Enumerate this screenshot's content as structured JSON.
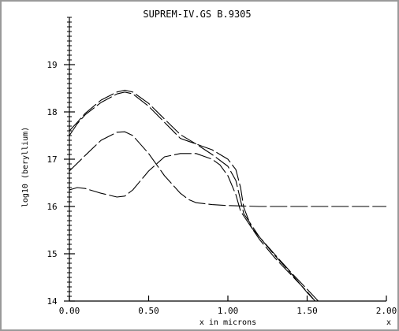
{
  "window": {
    "corner_mark": "x"
  },
  "chart_data": {
    "type": "line",
    "title": "SUPREM-IV.GS B.9305",
    "xlabel": "x in microns",
    "ylabel": "log10 (beryllium)",
    "xlim": [
      0.0,
      2.0
    ],
    "ylim": [
      14.0,
      20.0
    ],
    "x_ticks": [
      0.0,
      0.5,
      1.0,
      1.5,
      2.0
    ],
    "x_tick_labels": [
      "0.00",
      "0.50",
      "1.00",
      "1.50",
      "2.00"
    ],
    "y_ticks": [
      14,
      15,
      16,
      17,
      18,
      19
    ],
    "y_tick_labels": [
      "14",
      "15",
      "16",
      "17",
      "18",
      "19"
    ],
    "grid": false,
    "legend": "none",
    "line_color": "#000000",
    "series": [
      {
        "x": [
          0.0,
          0.05,
          0.1,
          0.2,
          0.3,
          0.35,
          0.4,
          0.5,
          0.6,
          0.7,
          0.8,
          0.9,
          1.0,
          1.05,
          1.1,
          1.2,
          1.3,
          1.4,
          1.5,
          1.57
        ],
        "values": [
          17.6,
          17.78,
          17.97,
          18.25,
          18.42,
          18.46,
          18.42,
          18.18,
          17.85,
          17.52,
          17.32,
          17.1,
          16.85,
          16.55,
          15.85,
          15.35,
          14.97,
          14.6,
          14.25,
          14.0
        ]
      },
      {
        "x": [
          0.0,
          0.05,
          0.1,
          0.2,
          0.3,
          0.35,
          0.4,
          0.5,
          0.6,
          0.7,
          0.75,
          0.8,
          0.9,
          1.0,
          1.05,
          1.08,
          1.1,
          1.15,
          1.2,
          1.3,
          1.4,
          1.5,
          1.55
        ],
        "values": [
          17.5,
          17.75,
          17.94,
          18.2,
          18.38,
          18.42,
          18.38,
          18.12,
          17.78,
          17.44,
          17.38,
          17.32,
          17.2,
          17.0,
          16.78,
          16.4,
          15.98,
          15.55,
          15.35,
          14.95,
          14.58,
          14.18,
          14.0
        ]
      },
      {
        "x": [
          0.0,
          0.1,
          0.2,
          0.3,
          0.35,
          0.4,
          0.5,
          0.6,
          0.7,
          0.75,
          0.8,
          0.9,
          1.0,
          1.1,
          1.2,
          1.3,
          1.5,
          1.75,
          2.0
        ],
        "values": [
          16.75,
          17.08,
          17.4,
          17.57,
          17.58,
          17.5,
          17.12,
          16.65,
          16.28,
          16.15,
          16.08,
          16.04,
          16.02,
          16.01,
          16.0,
          16.0,
          16.0,
          16.0,
          16.0
        ]
      },
      {
        "x": [
          0.0,
          0.05,
          0.1,
          0.2,
          0.3,
          0.35,
          0.4,
          0.5,
          0.6,
          0.7,
          0.8,
          0.9,
          0.95,
          1.0,
          1.05,
          1.08,
          1.1,
          1.2,
          1.3,
          1.4,
          1.5,
          1.55
        ],
        "values": [
          16.35,
          16.4,
          16.38,
          16.28,
          16.2,
          16.22,
          16.35,
          16.75,
          17.05,
          17.12,
          17.12,
          17.0,
          16.88,
          16.65,
          16.25,
          15.9,
          15.8,
          15.3,
          14.9,
          14.55,
          14.2,
          14.0
        ]
      }
    ]
  }
}
